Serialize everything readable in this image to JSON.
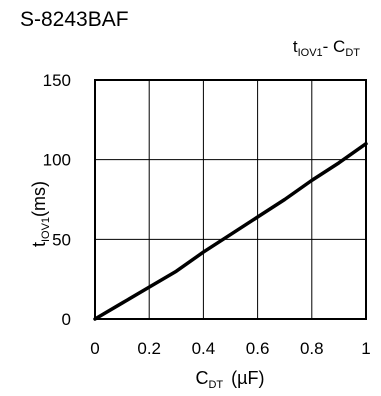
{
  "part_number": "S-8243BAF",
  "chart_data": {
    "type": "line",
    "title": {
      "main": "t",
      "main_sub": "IOV1",
      "sep": "- ",
      "var": "C",
      "var_sub": "DT"
    },
    "xlabel": {
      "main": "C",
      "sub": "DT",
      "unit": "(µF)"
    },
    "ylabel": {
      "main": "t",
      "sub": "IOV1",
      "unit": "(ms)"
    },
    "xlim": [
      0,
      1
    ],
    "ylim": [
      0,
      150
    ],
    "x_ticks": [
      0,
      0.2,
      0.4,
      0.6,
      0.8,
      1
    ],
    "x_tick_labels": [
      "0",
      "0.2",
      "0.4",
      "0.6",
      "0.8",
      "1"
    ],
    "y_ticks": [
      0,
      50,
      100,
      150
    ],
    "y_tick_labels": [
      "0",
      "50",
      "100",
      "150"
    ],
    "grid": true,
    "series": [
      {
        "color": "#000000",
        "x": [
          0,
          0.1,
          0.2,
          0.3,
          0.4,
          0.5,
          0.6,
          0.7,
          0.8,
          0.9,
          1.0
        ],
        "y": [
          0,
          10,
          20,
          30,
          42,
          53,
          64,
          75,
          87,
          98,
          110
        ]
      }
    ]
  }
}
